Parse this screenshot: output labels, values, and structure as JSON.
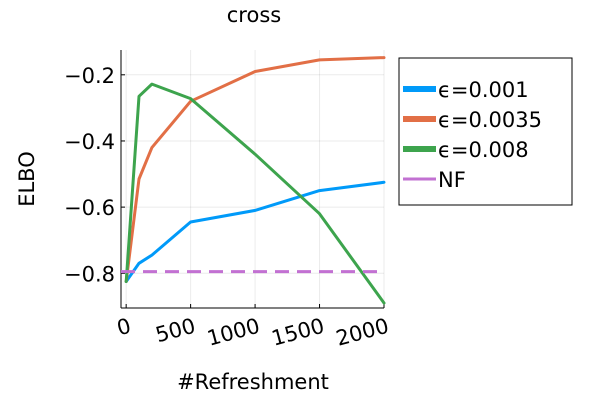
{
  "chart_data": {
    "type": "line",
    "title": "cross",
    "xlabel": "#Refreshment",
    "ylabel": "ELBO",
    "xlim": [
      -40,
      2000
    ],
    "ylim": [
      -0.905,
      -0.125
    ],
    "x_ticks": [
      0,
      500,
      1000,
      1500,
      2000
    ],
    "x_tick_labels": [
      "0",
      "500",
      "1000",
      "1500",
      "2000"
    ],
    "y_ticks": [
      -0.8,
      -0.6,
      -0.4,
      -0.2
    ],
    "y_tick_labels": [
      "−0.8",
      "−0.6",
      "−0.4",
      "−0.2"
    ],
    "grid": true,
    "legend_position": "outside-right",
    "series": [
      {
        "name": "ϵ=0.001",
        "color": "#009af9",
        "style": "solid",
        "x": [
          0,
          100,
          200,
          500,
          1000,
          1500,
          2000
        ],
        "y": [
          -0.825,
          -0.77,
          -0.745,
          -0.645,
          -0.61,
          -0.55,
          -0.525
        ]
      },
      {
        "name": "ϵ=0.0035",
        "color": "#e26f46",
        "style": "solid",
        "x": [
          0,
          100,
          200,
          500,
          1000,
          1500,
          2000
        ],
        "y": [
          -0.825,
          -0.515,
          -0.42,
          -0.28,
          -0.19,
          -0.155,
          -0.148
        ]
      },
      {
        "name": "ϵ=0.008",
        "color": "#3da44d",
        "style": "solid",
        "x": [
          0,
          100,
          200,
          500,
          1000,
          1500,
          2000
        ],
        "y": [
          -0.825,
          -0.265,
          -0.228,
          -0.272,
          -0.44,
          -0.62,
          -0.89
        ]
      },
      {
        "name": "NF",
        "color": "#c271d2",
        "style": "dashed",
        "x": [
          -40,
          2000
        ],
        "y": [
          -0.795,
          -0.795
        ]
      }
    ]
  }
}
